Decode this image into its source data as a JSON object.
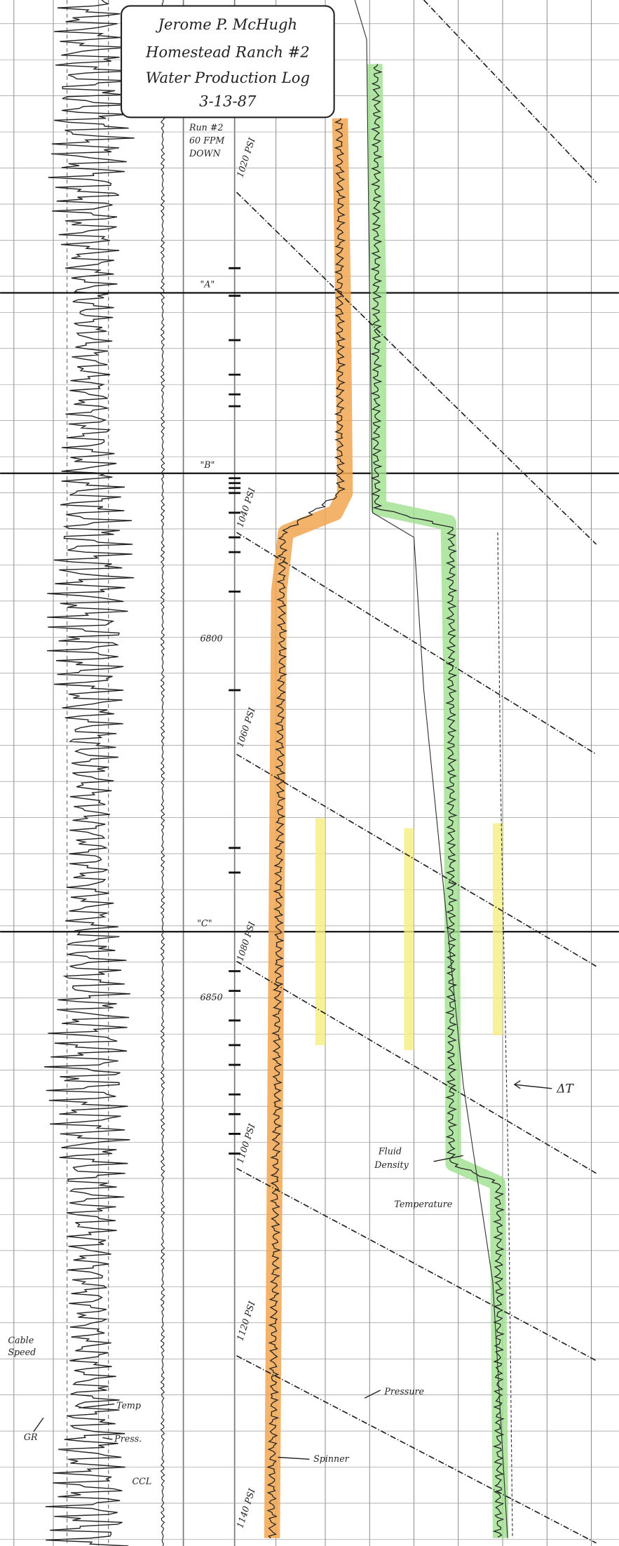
{
  "header": {
    "lines": [
      "Jerome P. McHugh",
      "Homestead Ranch #2",
      "Water Production Log",
      "3-13-87"
    ]
  },
  "run": {
    "lines": [
      "Run #2",
      "60 FPM",
      "DOWN"
    ]
  },
  "markers": [
    "\"A\"",
    "\"B\"",
    "\"C\""
  ],
  "depths": [
    "6800",
    "6850"
  ],
  "pressure_labels": [
    "1020 PSI",
    "1040 PSI",
    "1060 PSI",
    "1080 PSI",
    "1100 PSI",
    "1120 PSI",
    "1140 PSI"
  ],
  "curve_labels": {
    "delta_t": "ΔT",
    "fluid_density": [
      "Fluid",
      "Density"
    ],
    "temperature": "Temperature",
    "pressure": "Pressure",
    "spinner": "Spinner",
    "cable_speed": [
      "Cable",
      "Speed"
    ],
    "gr": "GR",
    "temp": "Temp",
    "press": "Press.",
    "ccl": "CCL"
  }
}
